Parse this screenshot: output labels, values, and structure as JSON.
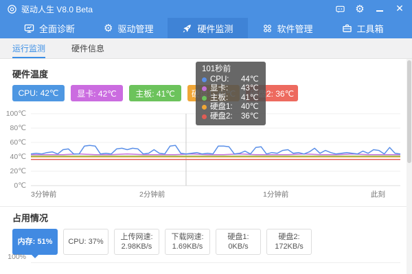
{
  "titlebar": {
    "title": "驱动人生 V8.0 Beta"
  },
  "nav": {
    "tabs": [
      {
        "label": "全面诊断",
        "icon": "monitor-icon",
        "active": false
      },
      {
        "label": "驱动管理",
        "icon": "gear-icon",
        "active": false
      },
      {
        "label": "硬件监测",
        "icon": "rocket-icon",
        "active": true
      },
      {
        "label": "软件管理",
        "icon": "software-icon",
        "active": false
      },
      {
        "label": "工具箱",
        "icon": "toolbox-icon",
        "active": false
      }
    ]
  },
  "subtabs": [
    {
      "label": "运行监测",
      "active": true
    },
    {
      "label": "硬件信息",
      "active": false
    }
  ],
  "temperature_section": {
    "title": "硬件温度",
    "buttons": [
      {
        "label": "CPU: 42℃",
        "color": "#4e97e2"
      },
      {
        "label": "显卡: 42℃",
        "color": "#cb6ce0"
      },
      {
        "label": "主板: 41℃",
        "color": "#6cc35c"
      },
      {
        "label": "硬盘1: 40℃",
        "color": "#f0a637"
      },
      {
        "label": "硬盘2: 36℃",
        "color": "#ed6a5f"
      }
    ],
    "tooltip": {
      "time": "101秒前",
      "rows": [
        {
          "label": "CPU:",
          "value": "44℃",
          "color": "#5a8fe8"
        },
        {
          "label": "显卡:",
          "value": "43℃",
          "color": "#c36fd6"
        },
        {
          "label": "主板:",
          "value": "41℃",
          "color": "#6cc35c"
        },
        {
          "label": "硬盘1:",
          "value": "40℃",
          "color": "#f0a637"
        },
        {
          "label": "硬盘2:",
          "value": "36℃",
          "color": "#e05d55"
        }
      ]
    }
  },
  "chart_data": {
    "type": "line",
    "title": "硬件温度",
    "ylim": [
      0,
      100
    ],
    "yticks": [
      "100℃",
      "80℃",
      "60℃",
      "40℃",
      "20℃",
      "0℃"
    ],
    "xticks": [
      "3分钟前",
      "2分钟前",
      "1分钟前",
      "此刻"
    ],
    "grid": true,
    "legend_position": "none",
    "crosshair_fraction": 0.42,
    "series": [
      {
        "name": "CPU",
        "color": "#5a8fe8",
        "values": [
          44,
          45,
          44,
          46,
          47,
          44,
          50,
          51,
          44,
          44,
          55,
          56,
          55,
          44,
          45,
          44,
          51,
          52,
          50,
          52,
          51,
          44,
          45,
          50,
          45,
          44,
          55,
          56,
          45,
          44,
          45,
          46,
          44,
          45,
          44,
          55,
          55,
          54,
          44,
          45,
          48,
          44,
          53,
          54,
          44,
          46,
          45,
          49,
          50,
          45,
          46,
          44,
          47,
          52,
          45,
          49,
          46,
          44,
          45,
          46,
          45,
          44,
          48,
          45,
          50,
          49,
          44,
          53,
          45,
          44
        ]
      },
      {
        "name": "显卡",
        "color": "#c36fd6",
        "values": [
          43,
          43,
          43,
          44,
          43,
          43,
          44,
          43,
          43,
          43,
          44,
          43,
          43,
          44,
          43,
          43,
          43,
          44,
          43,
          43,
          44,
          43,
          43,
          43
        ]
      },
      {
        "name": "主板",
        "color": "#8db23e",
        "values": [
          41,
          41
        ]
      },
      {
        "name": "硬盘1",
        "color": "#f0a637",
        "values": [
          40,
          40
        ]
      },
      {
        "name": "硬盘2",
        "color": "#e05d55",
        "values": [
          36.5,
          36.5
        ]
      }
    ]
  },
  "usage_section": {
    "title": "占用情况",
    "buttons": [
      {
        "line1": "内存: 51%",
        "line2": "",
        "active": true
      },
      {
        "line1": "CPU: 37%",
        "line2": "",
        "active": false
      },
      {
        "line1": "上传网速:",
        "line2": "2.98KB/s",
        "active": false
      },
      {
        "line1": "下载网速:",
        "line2": "1.69KB/s",
        "active": false
      },
      {
        "line1": "硬盘1:",
        "line2": "0KB/s",
        "active": false
      },
      {
        "line1": "硬盘2:",
        "line2": "172KB/s",
        "active": false
      }
    ],
    "chart_top_label": "100%"
  }
}
